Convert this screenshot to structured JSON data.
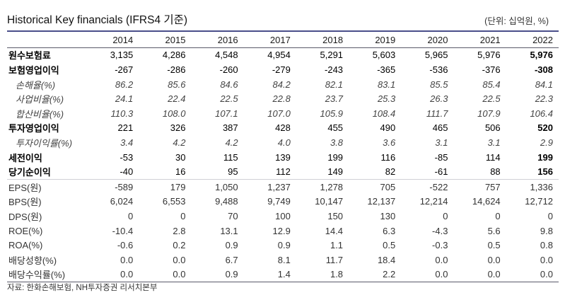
{
  "header": {
    "title": "Historical Key financials (IFRS4 기준)",
    "unit": "(단위: 십억원, %)"
  },
  "columns": [
    "2014",
    "2015",
    "2016",
    "2017",
    "2018",
    "2019",
    "2020",
    "2021",
    "2022"
  ],
  "rows": [
    {
      "label": "원수보험료",
      "style": "bold",
      "values": [
        "3,135",
        "4,286",
        "4,548",
        "4,954",
        "5,291",
        "5,603",
        "5,965",
        "5,976",
        "5,976"
      ]
    },
    {
      "label": "보험영업이익",
      "style": "bold",
      "values": [
        "-267",
        "-286",
        "-260",
        "-279",
        "-243",
        "-365",
        "-536",
        "-376",
        "-308"
      ]
    },
    {
      "label": "손해율(%)",
      "style": "italic",
      "values": [
        "86.2",
        "85.6",
        "84.6",
        "84.2",
        "82.1",
        "83.1",
        "85.5",
        "85.4",
        "84.1"
      ]
    },
    {
      "label": "사업비율(%)",
      "style": "italic",
      "values": [
        "24.1",
        "22.4",
        "22.5",
        "22.8",
        "23.7",
        "25.3",
        "26.3",
        "22.5",
        "22.3"
      ]
    },
    {
      "label": "합산비율(%)",
      "style": "italic",
      "values": [
        "110.3",
        "108.0",
        "107.1",
        "107.0",
        "105.9",
        "108.4",
        "111.7",
        "107.9",
        "106.4"
      ]
    },
    {
      "label": "투자영업이익",
      "style": "bold",
      "values": [
        "221",
        "326",
        "387",
        "428",
        "455",
        "490",
        "465",
        "506",
        "520"
      ]
    },
    {
      "label": "투자이익률(%)",
      "style": "italic",
      "values": [
        "3.4",
        "4.2",
        "4.2",
        "4.0",
        "3.8",
        "3.6",
        "3.1",
        "3.1",
        "2.9"
      ]
    },
    {
      "label": "세전이익",
      "style": "bold",
      "values": [
        "-53",
        "30",
        "115",
        "139",
        "199",
        "116",
        "-85",
        "114",
        "199"
      ]
    },
    {
      "label": "당기순이익",
      "style": "bold",
      "values": [
        "-40",
        "16",
        "95",
        "112",
        "149",
        "82",
        "-61",
        "88",
        "156"
      ]
    },
    {
      "label": "EPS(원)",
      "style": "plain",
      "values": [
        "-589",
        "179",
        "1,050",
        "1,237",
        "1,278",
        "705",
        "-522",
        "757",
        "1,336"
      ]
    },
    {
      "label": "BPS(원)",
      "style": "plain",
      "values": [
        "6,024",
        "6,553",
        "9,488",
        "9,749",
        "10,147",
        "12,137",
        "12,214",
        "14,624",
        "12,712"
      ]
    },
    {
      "label": "DPS(원)",
      "style": "plain",
      "values": [
        "0",
        "0",
        "70",
        "100",
        "150",
        "130",
        "0",
        "0",
        "0"
      ]
    },
    {
      "label": "ROE(%)",
      "style": "plain",
      "values": [
        "-10.4",
        "2.8",
        "13.1",
        "12.9",
        "14.4",
        "6.3",
        "-4.3",
        "5.6",
        "9.8"
      ]
    },
    {
      "label": "ROA(%)",
      "style": "plain",
      "values": [
        "-0.6",
        "0.2",
        "0.9",
        "0.9",
        "1.1",
        "0.5",
        "-0.3",
        "0.5",
        "0.8"
      ]
    },
    {
      "label": "배당성향(%)",
      "style": "plain",
      "values": [
        "0.0",
        "0.0",
        "6.7",
        "8.1",
        "11.7",
        "18.4",
        "0.0",
        "0.0",
        "0.0"
      ]
    },
    {
      "label": "배당수익률(%)",
      "style": "plain",
      "values": [
        "0.0",
        "0.0",
        "0.9",
        "1.4",
        "1.8",
        "2.2",
        "0.0",
        "0.0",
        "0.0"
      ]
    }
  ],
  "footer": {
    "source": "자료: 한화손해보험, NH투자증권 리서치본부"
  },
  "colors": {
    "rule": "#4a4f8a",
    "text": "#1a1a1a"
  }
}
